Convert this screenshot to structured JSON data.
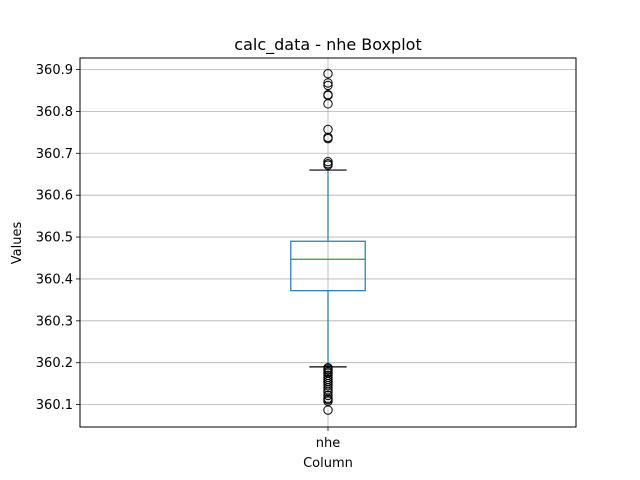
{
  "chart_data": {
    "type": "box",
    "title": "calc_data - nhe Boxplot",
    "xlabel": "Column",
    "ylabel": "Values",
    "categories": [
      "nhe"
    ],
    "ylim": [
      360.0465,
      360.9275
    ],
    "yticks": [
      360.1,
      360.2,
      360.3,
      360.4,
      360.5,
      360.6,
      360.7,
      360.8,
      360.9
    ],
    "ytick_labels": [
      "360.1",
      "360.2",
      "360.3",
      "360.4",
      "360.5",
      "360.6",
      "360.7",
      "360.8",
      "360.9"
    ],
    "grid": true,
    "boxes": [
      {
        "category": "nhe",
        "whisker_low": 360.19,
        "q1": 360.372,
        "median": 360.447,
        "q3": 360.49,
        "whisker_high": 360.66,
        "outliers_high": [
          360.68,
          360.675,
          360.672,
          360.738,
          360.735,
          360.757,
          360.818,
          360.84,
          360.838,
          360.862,
          360.868,
          360.89
        ],
        "outliers_low": [
          360.188,
          360.185,
          360.182,
          360.178,
          360.175,
          360.17,
          360.165,
          360.16,
          360.155,
          360.15,
          360.145,
          360.14,
          360.135,
          360.13,
          360.122,
          360.115,
          360.112,
          360.108,
          360.087
        ]
      }
    ],
    "colors": {
      "box": "#1f77b4",
      "median": "#2ca02c",
      "whisker": "#1f77b4",
      "cap": "#000000",
      "outlier": "#000000",
      "grid": "#b0b0b0",
      "axes": "#000000"
    }
  }
}
